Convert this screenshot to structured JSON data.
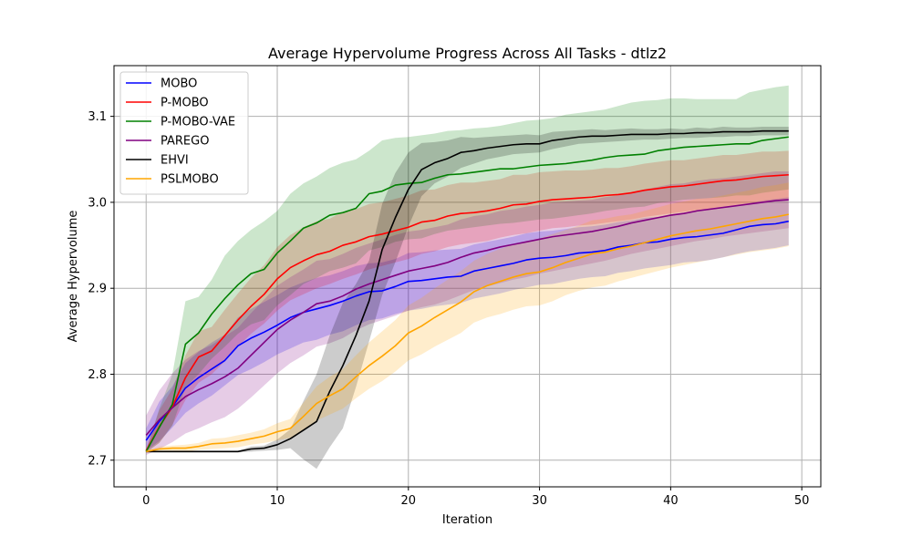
{
  "chart_data": {
    "type": "line",
    "title": "Average Hypervolume Progress Across All Tasks - dtlz2",
    "xlabel": "Iteration",
    "ylabel": "Average Hypervolume",
    "xlim": [
      -2.45,
      51.45
    ],
    "ylim": [
      2.669,
      3.159
    ],
    "xticks": [
      0,
      10,
      20,
      30,
      40,
      50
    ],
    "yticks": [
      2.7,
      2.8,
      2.9,
      3.0,
      3.1
    ],
    "xtick_labels": [
      "0",
      "10",
      "20",
      "30",
      "40",
      "50"
    ],
    "ytick_labels": [
      "2.7",
      "2.8",
      "2.9",
      "3.0",
      "3.1"
    ],
    "grid": true,
    "legend_position": "upper-left",
    "x": [
      0,
      1,
      2,
      3,
      4,
      5,
      6,
      7,
      8,
      9,
      10,
      11,
      12,
      13,
      14,
      15,
      16,
      17,
      18,
      19,
      20,
      21,
      22,
      23,
      24,
      25,
      26,
      27,
      28,
      29,
      30,
      31,
      32,
      33,
      34,
      35,
      36,
      37,
      38,
      39,
      40,
      41,
      42,
      43,
      44,
      45,
      46,
      47,
      48,
      49
    ],
    "series": [
      {
        "name": "MOBO",
        "color": "#0000ff",
        "values": [
          2.723,
          2.745,
          2.762,
          2.784,
          2.796,
          2.806,
          2.816,
          2.833,
          2.842,
          2.849,
          2.857,
          2.866,
          2.872,
          2.876,
          2.88,
          2.885,
          2.891,
          2.896,
          2.897,
          2.902,
          2.908,
          2.909,
          2.911,
          2.913,
          2.914,
          2.92,
          2.923,
          2.926,
          2.929,
          2.933,
          2.935,
          2.936,
          2.938,
          2.941,
          2.942,
          2.944,
          2.948,
          2.95,
          2.953,
          2.954,
          2.957,
          2.959,
          2.96,
          2.962,
          2.964,
          2.968,
          2.972,
          2.974,
          2.975,
          2.978
        ],
        "lower": [
          2.711,
          2.722,
          2.738,
          2.755,
          2.766,
          2.775,
          2.787,
          2.799,
          2.806,
          2.814,
          2.823,
          2.83,
          2.837,
          2.84,
          2.846,
          2.85,
          2.857,
          2.863,
          2.865,
          2.87,
          2.874,
          2.876,
          2.879,
          2.881,
          2.883,
          2.888,
          2.891,
          2.894,
          2.898,
          2.901,
          2.904,
          2.905,
          2.908,
          2.911,
          2.913,
          2.914,
          2.918,
          2.92,
          2.923,
          2.925,
          2.927,
          2.93,
          2.931,
          2.933,
          2.936,
          2.94,
          2.943,
          2.945,
          2.947,
          2.95
        ],
        "upper": [
          2.737,
          2.768,
          2.786,
          2.813,
          2.826,
          2.837,
          2.846,
          2.866,
          2.876,
          2.884,
          2.892,
          2.901,
          2.907,
          2.912,
          2.915,
          2.92,
          2.926,
          2.929,
          2.93,
          2.934,
          2.941,
          2.942,
          2.944,
          2.945,
          2.946,
          2.951,
          2.954,
          2.957,
          2.96,
          2.964,
          2.966,
          2.967,
          2.969,
          2.971,
          2.972,
          2.974,
          2.977,
          2.979,
          2.982,
          2.983,
          2.986,
          2.988,
          2.989,
          2.991,
          2.993,
          2.996,
          2.999,
          3.002,
          3.004,
          3.006
        ]
      },
      {
        "name": "P-MOBO",
        "color": "#ff0000",
        "values": [
          2.711,
          2.739,
          2.762,
          2.796,
          2.82,
          2.827,
          2.845,
          2.863,
          2.879,
          2.893,
          2.911,
          2.924,
          2.932,
          2.939,
          2.943,
          2.95,
          2.954,
          2.96,
          2.963,
          2.967,
          2.971,
          2.977,
          2.979,
          2.984,
          2.987,
          2.988,
          2.99,
          2.993,
          2.997,
          2.998,
          3.001,
          3.003,
          3.004,
          3.005,
          3.006,
          3.008,
          3.009,
          3.011,
          3.014,
          3.016,
          3.018,
          3.019,
          3.021,
          3.023,
          3.025,
          3.026,
          3.028,
          3.03,
          3.031,
          3.032
        ],
        "lower": [
          2.709,
          2.72,
          2.741,
          2.77,
          2.79,
          2.8,
          2.815,
          2.832,
          2.847,
          2.859,
          2.874,
          2.886,
          2.893,
          2.9,
          2.905,
          2.911,
          2.916,
          2.922,
          2.926,
          2.93,
          2.934,
          2.94,
          2.943,
          2.948,
          2.951,
          2.953,
          2.955,
          2.959,
          2.962,
          2.964,
          2.967,
          2.97,
          2.971,
          2.973,
          2.974,
          2.976,
          2.978,
          2.98,
          2.983,
          2.985,
          2.987,
          2.989,
          2.991,
          2.993,
          2.995,
          2.997,
          2.999,
          3.001,
          3.003,
          3.004
        ],
        "upper": [
          2.713,
          2.758,
          2.783,
          2.822,
          2.85,
          2.855,
          2.875,
          2.894,
          2.912,
          2.927,
          2.948,
          2.962,
          2.971,
          2.978,
          2.981,
          2.989,
          2.992,
          2.998,
          3.0,
          3.004,
          3.008,
          3.014,
          3.015,
          3.02,
          3.023,
          3.023,
          3.025,
          3.027,
          3.032,
          3.032,
          3.035,
          3.036,
          3.037,
          3.037,
          3.038,
          3.04,
          3.04,
          3.042,
          3.045,
          3.047,
          3.049,
          3.049,
          3.051,
          3.053,
          3.055,
          3.055,
          3.057,
          3.059,
          3.059,
          3.06
        ]
      },
      {
        "name": "P-MOBO-VAE",
        "color": "#008000",
        "values": [
          2.71,
          2.738,
          2.765,
          2.835,
          2.848,
          2.87,
          2.888,
          2.904,
          2.917,
          2.922,
          2.941,
          2.955,
          2.97,
          2.976,
          2.985,
          2.988,
          2.993,
          3.01,
          3.013,
          3.02,
          3.022,
          3.023,
          3.028,
          3.032,
          3.033,
          3.035,
          3.037,
          3.039,
          3.039,
          3.041,
          3.043,
          3.044,
          3.045,
          3.047,
          3.049,
          3.052,
          3.054,
          3.055,
          3.056,
          3.06,
          3.062,
          3.064,
          3.065,
          3.066,
          3.067,
          3.068,
          3.068,
          3.072,
          3.074,
          3.076
        ],
        "lower": [
          2.709,
          2.72,
          2.74,
          2.785,
          2.8,
          2.818,
          2.832,
          2.847,
          2.858,
          2.863,
          2.88,
          2.892,
          2.905,
          2.912,
          2.92,
          2.924,
          2.929,
          2.944,
          2.948,
          2.954,
          2.957,
          2.958,
          2.963,
          2.967,
          2.969,
          2.971,
          2.973,
          2.975,
          2.976,
          2.978,
          2.98,
          2.981,
          2.983,
          2.985,
          2.987,
          2.99,
          2.992,
          2.994,
          2.995,
          2.999,
          3.001,
          3.003,
          3.004,
          3.005,
          3.006,
          3.008,
          3.008,
          3.011,
          3.013,
          3.015
        ],
        "upper": [
          2.711,
          2.76,
          2.8,
          2.885,
          2.89,
          2.91,
          2.938,
          2.955,
          2.968,
          2.978,
          2.99,
          3.01,
          3.022,
          3.03,
          3.04,
          3.046,
          3.05,
          3.06,
          3.072,
          3.075,
          3.076,
          3.078,
          3.08,
          3.083,
          3.084,
          3.086,
          3.087,
          3.089,
          3.092,
          3.095,
          3.096,
          3.098,
          3.102,
          3.104,
          3.106,
          3.108,
          3.112,
          3.116,
          3.118,
          3.119,
          3.121,
          3.121,
          3.12,
          3.12,
          3.12,
          3.12,
          3.128,
          3.131,
          3.134,
          3.136
        ]
      },
      {
        "name": "PAREGO",
        "color": "#800080",
        "values": [
          2.729,
          2.747,
          2.761,
          2.774,
          2.782,
          2.789,
          2.797,
          2.807,
          2.822,
          2.837,
          2.852,
          2.863,
          2.872,
          2.882,
          2.885,
          2.891,
          2.899,
          2.905,
          2.91,
          2.915,
          2.92,
          2.923,
          2.926,
          2.93,
          2.936,
          2.941,
          2.944,
          2.948,
          2.951,
          2.954,
          2.957,
          2.96,
          2.962,
          2.964,
          2.966,
          2.969,
          2.972,
          2.976,
          2.979,
          2.982,
          2.985,
          2.987,
          2.99,
          2.992,
          2.994,
          2.996,
          2.998,
          3.0,
          3.002,
          3.003
        ],
        "lower": [
          2.706,
          2.713,
          2.721,
          2.731,
          2.737,
          2.744,
          2.75,
          2.76,
          2.773,
          2.787,
          2.801,
          2.813,
          2.822,
          2.832,
          2.836,
          2.842,
          2.851,
          2.858,
          2.863,
          2.868,
          2.874,
          2.878,
          2.881,
          2.886,
          2.892,
          2.898,
          2.902,
          2.906,
          2.91,
          2.913,
          2.917,
          2.92,
          2.923,
          2.926,
          2.929,
          2.932,
          2.936,
          2.94,
          2.943,
          2.946,
          2.949,
          2.952,
          2.955,
          2.957,
          2.96,
          2.962,
          2.964,
          2.966,
          2.968,
          2.97
        ],
        "upper": [
          2.752,
          2.781,
          2.801,
          2.817,
          2.827,
          2.834,
          2.844,
          2.854,
          2.871,
          2.887,
          2.903,
          2.913,
          2.922,
          2.932,
          2.934,
          2.94,
          2.947,
          2.952,
          2.957,
          2.962,
          2.966,
          2.968,
          2.971,
          2.974,
          2.98,
          2.984,
          2.986,
          2.99,
          2.992,
          2.995,
          2.997,
          3.0,
          3.001,
          3.002,
          3.003,
          3.006,
          3.008,
          3.012,
          3.015,
          3.018,
          3.021,
          3.022,
          3.025,
          3.027,
          3.028,
          3.03,
          3.032,
          3.034,
          3.036,
          3.036
        ]
      },
      {
        "name": "EHVI",
        "color": "#000000",
        "values": [
          2.71,
          2.71,
          2.71,
          2.71,
          2.71,
          2.71,
          2.71,
          2.71,
          2.713,
          2.714,
          2.718,
          2.725,
          2.735,
          2.745,
          2.78,
          2.81,
          2.845,
          2.885,
          2.945,
          2.982,
          3.015,
          3.038,
          3.046,
          3.051,
          3.058,
          3.06,
          3.063,
          3.065,
          3.067,
          3.068,
          3.068,
          3.072,
          3.074,
          3.076,
          3.077,
          3.077,
          3.078,
          3.079,
          3.079,
          3.079,
          3.08,
          3.08,
          3.081,
          3.081,
          3.082,
          3.082,
          3.082,
          3.083,
          3.083,
          3.083
        ],
        "lower": [
          2.709,
          2.709,
          2.709,
          2.709,
          2.709,
          2.709,
          2.709,
          2.709,
          2.71,
          2.711,
          2.712,
          2.714,
          2.701,
          2.69,
          2.715,
          2.737,
          2.785,
          2.838,
          2.892,
          2.93,
          2.972,
          3.007,
          3.022,
          3.03,
          3.04,
          3.045,
          3.05,
          3.053,
          3.056,
          3.057,
          3.058,
          3.062,
          3.065,
          3.068,
          3.069,
          3.07,
          3.071,
          3.072,
          3.073,
          3.073,
          3.074,
          3.075,
          3.075,
          3.076,
          3.076,
          3.077,
          3.077,
          3.078,
          3.078,
          3.078
        ],
        "upper": [
          2.711,
          2.711,
          2.711,
          2.711,
          2.711,
          2.711,
          2.711,
          2.711,
          2.716,
          2.717,
          2.724,
          2.736,
          2.769,
          2.8,
          2.845,
          2.883,
          2.905,
          2.932,
          2.998,
          3.034,
          3.058,
          3.069,
          3.07,
          3.072,
          3.076,
          3.075,
          3.076,
          3.077,
          3.078,
          3.079,
          3.078,
          3.082,
          3.083,
          3.084,
          3.085,
          3.084,
          3.085,
          3.086,
          3.085,
          3.085,
          3.086,
          3.085,
          3.087,
          3.086,
          3.088,
          3.087,
          3.087,
          3.088,
          3.088,
          3.088
        ]
      },
      {
        "name": "PSLMOBO",
        "color": "#ffa500",
        "values": [
          2.71,
          2.713,
          2.714,
          2.714,
          2.716,
          2.719,
          2.72,
          2.722,
          2.725,
          2.728,
          2.733,
          2.737,
          2.751,
          2.766,
          2.775,
          2.783,
          2.797,
          2.81,
          2.821,
          2.833,
          2.848,
          2.856,
          2.866,
          2.875,
          2.884,
          2.896,
          2.903,
          2.908,
          2.913,
          2.917,
          2.919,
          2.924,
          2.93,
          2.935,
          2.94,
          2.942,
          2.946,
          2.949,
          2.953,
          2.957,
          2.961,
          2.964,
          2.967,
          2.969,
          2.972,
          2.975,
          2.978,
          2.981,
          2.983,
          2.986
        ],
        "lower": [
          2.709,
          2.71,
          2.711,
          2.71,
          2.712,
          2.713,
          2.714,
          2.715,
          2.718,
          2.72,
          2.723,
          2.726,
          2.735,
          2.746,
          2.753,
          2.76,
          2.772,
          2.783,
          2.792,
          2.803,
          2.816,
          2.823,
          2.832,
          2.84,
          2.848,
          2.86,
          2.866,
          2.87,
          2.875,
          2.879,
          2.88,
          2.885,
          2.892,
          2.897,
          2.901,
          2.903,
          2.908,
          2.912,
          2.916,
          2.92,
          2.924,
          2.927,
          2.93,
          2.933,
          2.936,
          2.939,
          2.942,
          2.944,
          2.946,
          2.949
        ],
        "upper": [
          2.711,
          2.716,
          2.717,
          2.718,
          2.72,
          2.725,
          2.726,
          2.729,
          2.732,
          2.736,
          2.743,
          2.748,
          2.767,
          2.786,
          2.797,
          2.806,
          2.822,
          2.837,
          2.85,
          2.863,
          2.88,
          2.889,
          2.9,
          2.91,
          2.92,
          2.932,
          2.94,
          2.946,
          2.951,
          2.955,
          2.958,
          2.963,
          2.968,
          2.973,
          2.979,
          2.981,
          2.984,
          2.986,
          2.99,
          2.994,
          2.998,
          3.001,
          3.004,
          3.005,
          3.008,
          3.011,
          3.014,
          3.018,
          3.02,
          3.023
        ]
      }
    ]
  }
}
